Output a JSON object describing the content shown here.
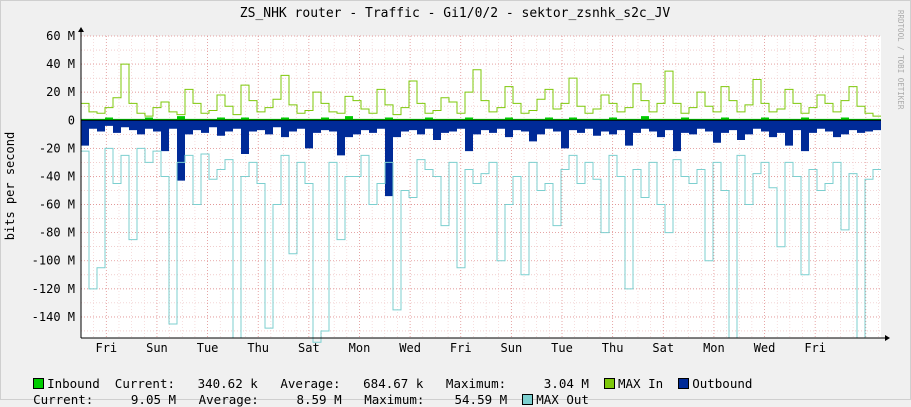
{
  "chart_data": {
    "type": "area",
    "title": "ZS_NHK router - Traffic - Gi1/0/2 - sektor_zsnhk_s2c_JV",
    "ylabel": "bits per second",
    "watermark": "RRDTOOL / TOBI OETIKER",
    "ylim": [
      -155000000,
      60000000
    ],
    "y_ticks": [
      "60 M",
      "40 M",
      "20 M",
      "0",
      "-20 M",
      "-40 M",
      "-60 M",
      "-80 M",
      "-100 M",
      "-120 M",
      "-140 M"
    ],
    "y_tick_values": [
      60000000,
      40000000,
      20000000,
      0,
      -20000000,
      -40000000,
      -60000000,
      -80000000,
      -100000000,
      -120000000,
      -140000000
    ],
    "x_labels": [
      "Fri",
      "Sun",
      "Tue",
      "Thu",
      "Sat",
      "Mon",
      "Wed",
      "Fri",
      "Sun",
      "Tue",
      "Thu",
      "Sat",
      "Mon",
      "Wed",
      "Fri"
    ],
    "x_label_positions": [
      1.0,
      3.0,
      5.0,
      7.0,
      9.0,
      11.0,
      13.0,
      15.0,
      17.0,
      19.0,
      21.0,
      23.0,
      25.0,
      27.0,
      29.0
    ],
    "x_span_days": 31.6,
    "grid": true,
    "series": [
      {
        "name": "Inbound",
        "color": "#00cc00",
        "style": "area",
        "sign": "positive",
        "values": [
          1,
          1,
          1,
          2,
          1,
          1,
          1,
          1,
          2,
          1,
          1,
          1,
          3,
          1,
          1,
          1,
          1,
          2,
          1,
          1,
          2,
          1,
          1,
          1,
          1,
          2,
          1,
          1,
          1,
          1,
          2,
          1,
          1,
          3,
          1,
          1,
          1,
          1,
          2,
          1,
          1,
          1,
          1,
          2,
          1,
          1,
          1,
          1,
          2,
          1,
          1,
          1,
          1,
          2,
          1,
          1,
          1,
          1,
          2,
          1,
          1,
          2,
          1,
          1,
          1,
          1,
          2,
          1,
          1,
          1,
          3,
          1,
          1,
          1,
          1,
          2,
          1,
          1,
          1,
          1,
          2,
          1,
          1,
          1,
          1,
          2,
          1,
          1,
          1,
          1,
          2,
          1,
          1,
          1,
          1,
          2,
          1,
          1,
          1,
          1
        ]
      },
      {
        "name": "MAX In",
        "color": "#7ec80a",
        "style": "line",
        "sign": "positive",
        "values": [
          12,
          6,
          5,
          9,
          16,
          40,
          12,
          5,
          3,
          9,
          13,
          6,
          4,
          22,
          12,
          5,
          7,
          18,
          10,
          4,
          25,
          14,
          6,
          9,
          15,
          32,
          11,
          5,
          7,
          20,
          12,
          6,
          5,
          17,
          14,
          8,
          5,
          22,
          11,
          4,
          9,
          28,
          12,
          5,
          7,
          16,
          13,
          5,
          20,
          36,
          14,
          6,
          9,
          24,
          12,
          5,
          7,
          15,
          22,
          8,
          12,
          30,
          10,
          5,
          8,
          18,
          12,
          6,
          9,
          26,
          14,
          6,
          12,
          35,
          12,
          5,
          9,
          20,
          10,
          6,
          24,
          14,
          6,
          11,
          29,
          12,
          6,
          8,
          22,
          12,
          5,
          9,
          18,
          12,
          6,
          14,
          24,
          10,
          5,
          3
        ]
      },
      {
        "name": "Outbound",
        "color": "#002a97",
        "style": "area",
        "sign": "negative",
        "values": [
          -18,
          -6,
          -8,
          -4,
          -9,
          -5,
          -7,
          -10,
          -6,
          -8,
          -22,
          -6,
          -43,
          -10,
          -7,
          -9,
          -5,
          -11,
          -8,
          -6,
          -24,
          -8,
          -7,
          -10,
          -5,
          -12,
          -8,
          -6,
          -20,
          -9,
          -7,
          -8,
          -25,
          -12,
          -10,
          -7,
          -9,
          -6,
          -54,
          -12,
          -8,
          -7,
          -10,
          -6,
          -14,
          -9,
          -8,
          -6,
          -22,
          -10,
          -7,
          -9,
          -6,
          -12,
          -7,
          -8,
          -15,
          -10,
          -6,
          -8,
          -20,
          -7,
          -9,
          -6,
          -11,
          -8,
          -10,
          -7,
          -18,
          -9,
          -6,
          -8,
          -12,
          -7,
          -22,
          -9,
          -10,
          -6,
          -8,
          -16,
          -9,
          -7,
          -14,
          -10,
          -6,
          -8,
          -12,
          -9,
          -18,
          -7,
          -22,
          -9,
          -6,
          -8,
          -12,
          -10,
          -7,
          -9,
          -8,
          -7
        ]
      },
      {
        "name": "MAX Out",
        "color": "#7ccfcf",
        "style": "line",
        "sign": "negative",
        "values": [
          -22,
          -120,
          -105,
          -20,
          -45,
          -25,
          -85,
          -20,
          -30,
          -22,
          -40,
          -145,
          -30,
          -25,
          -60,
          -24,
          -42,
          -35,
          -28,
          -155,
          -40,
          -30,
          -45,
          -148,
          -60,
          -25,
          -95,
          -30,
          -45,
          -158,
          -150,
          -30,
          -85,
          -40,
          -40,
          -25,
          -60,
          -45,
          -30,
          -135,
          -50,
          -55,
          -28,
          -35,
          -40,
          -75,
          -30,
          -105,
          -35,
          -45,
          -38,
          -30,
          -100,
          -60,
          -40,
          -110,
          -30,
          -50,
          -45,
          -75,
          -35,
          -25,
          -45,
          -30,
          -42,
          -80,
          -25,
          -40,
          -120,
          -35,
          -55,
          -30,
          -60,
          -80,
          -28,
          -40,
          -45,
          -35,
          -100,
          -30,
          -50,
          -155,
          -25,
          -60,
          -38,
          -30,
          -48,
          -90,
          -30,
          -40,
          -110,
          -35,
          -50,
          -45,
          -30,
          -78,
          -38,
          -155,
          -42,
          -35
        ]
      }
    ]
  },
  "legend": {
    "line1": {
      "inbound_label": "Inbound",
      "stats": "  Current:   340.62 k   Average:   684.67 k   Maximum:     3.04 M",
      "maxin_label": "MAX In",
      "outbound_label": "Outbound"
    },
    "line2": {
      "stats": "Current:     9.05 M   Average:     8.59 M   Maximum:    54.59 M",
      "maxout_label": "MAX Out"
    }
  }
}
